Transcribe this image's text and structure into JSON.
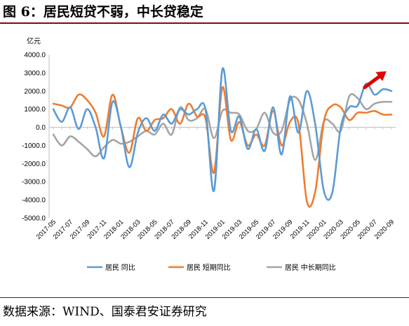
{
  "figure_title": "图 6：居民短贷不弱，中长贷稳定",
  "source_text": "数据来源：WIND、国泰君安证券研究",
  "chart_data": {
    "type": "line",
    "title": "",
    "ylabel": "亿元",
    "xlabel": "",
    "ylim": [
      -5000,
      4000
    ],
    "yticks": [
      -5000,
      -4000,
      -3000,
      -2000,
      -1000,
      0,
      1000,
      2000,
      3000,
      4000
    ],
    "ytick_labels": [
      "-5000.0",
      "-4000.0",
      "-3000.0",
      "-2000.0",
      "-1000.0",
      "0.0",
      "1000.0",
      "2000.0",
      "3000.0",
      "4000.0"
    ],
    "grid": false,
    "legend_position": "bottom",
    "x": [
      "2017-05",
      "2017-06",
      "2017-07",
      "2017-08",
      "2017-09",
      "2017-10",
      "2017-11",
      "2017-12",
      "2018-01",
      "2018-02",
      "2018-03",
      "2018-04",
      "2018-05",
      "2018-06",
      "2018-07",
      "2018-08",
      "2018-09",
      "2018-10",
      "2018-11",
      "2018-12",
      "2019-01",
      "2019-02",
      "2019-03",
      "2019-04",
      "2019-05",
      "2019-06",
      "2019-07",
      "2019-08",
      "2019-09",
      "2019-10",
      "2019-11",
      "2019-12",
      "2020-01",
      "2020-02",
      "2020-03",
      "2020-04",
      "2020-05",
      "2020-06",
      "2020-07",
      "2020-08",
      "2020-09"
    ],
    "x_tick_labels": [
      "2017-05",
      "2017-07",
      "2017-09",
      "2017-11",
      "2018-01",
      "2018-03",
      "2018-05",
      "2018-07",
      "2018-09",
      "2018-11",
      "2019-01",
      "2019-03",
      "2019-05",
      "2019-07",
      "2019-09",
      "2019-11",
      "2020-01",
      "2020-03",
      "2020-05",
      "2020-07",
      "2020-09"
    ],
    "series": [
      {
        "name": "居民  同比",
        "color": "#5b9bd5",
        "values": [
          1000,
          300,
          1100,
          -100,
          1000,
          0,
          -1700,
          1400,
          0,
          -2200,
          -300,
          500,
          -200,
          700,
          200,
          1000,
          700,
          1000,
          1000,
          -3500,
          3200,
          -200,
          600,
          -1200,
          -100,
          -1300,
          1100,
          -1500,
          1700,
          -300,
          2000,
          100,
          -3500,
          -3600,
          0,
          1100,
          1200,
          2400,
          1800,
          2100,
          2000
        ]
      },
      {
        "name": "居民  短期同比",
        "color": "#ed7d31",
        "values": [
          1300,
          1200,
          1100,
          1800,
          1500,
          800,
          -500,
          1800,
          0,
          -1400,
          500,
          -200,
          400,
          500,
          1000,
          200,
          1300,
          600,
          500,
          -2500,
          2200,
          -700,
          300,
          -1000,
          -400,
          -1000,
          900,
          -1000,
          300,
          200,
          -4100,
          -3500,
          300,
          1200,
          1100,
          400,
          800,
          800,
          900,
          700,
          700
        ]
      },
      {
        "name": "居民  中长期同比",
        "color": "#a5a5a5",
        "values": [
          -400,
          -1000,
          -500,
          -800,
          -1200,
          -1600,
          -1100,
          -700,
          -900,
          -800,
          -500,
          -200,
          -400,
          200,
          -400,
          1100,
          400,
          500,
          1000,
          -600,
          900,
          800,
          700,
          -200,
          -100,
          800,
          -300,
          -200,
          1500,
          1500,
          200,
          -1800,
          300,
          200,
          -200,
          1700,
          1600,
          1000,
          1300,
          1400,
          1400
        ]
      }
    ],
    "annotations": [
      {
        "type": "arrow",
        "color": "#e00000",
        "description": "upward trend arrow"
      }
    ]
  }
}
